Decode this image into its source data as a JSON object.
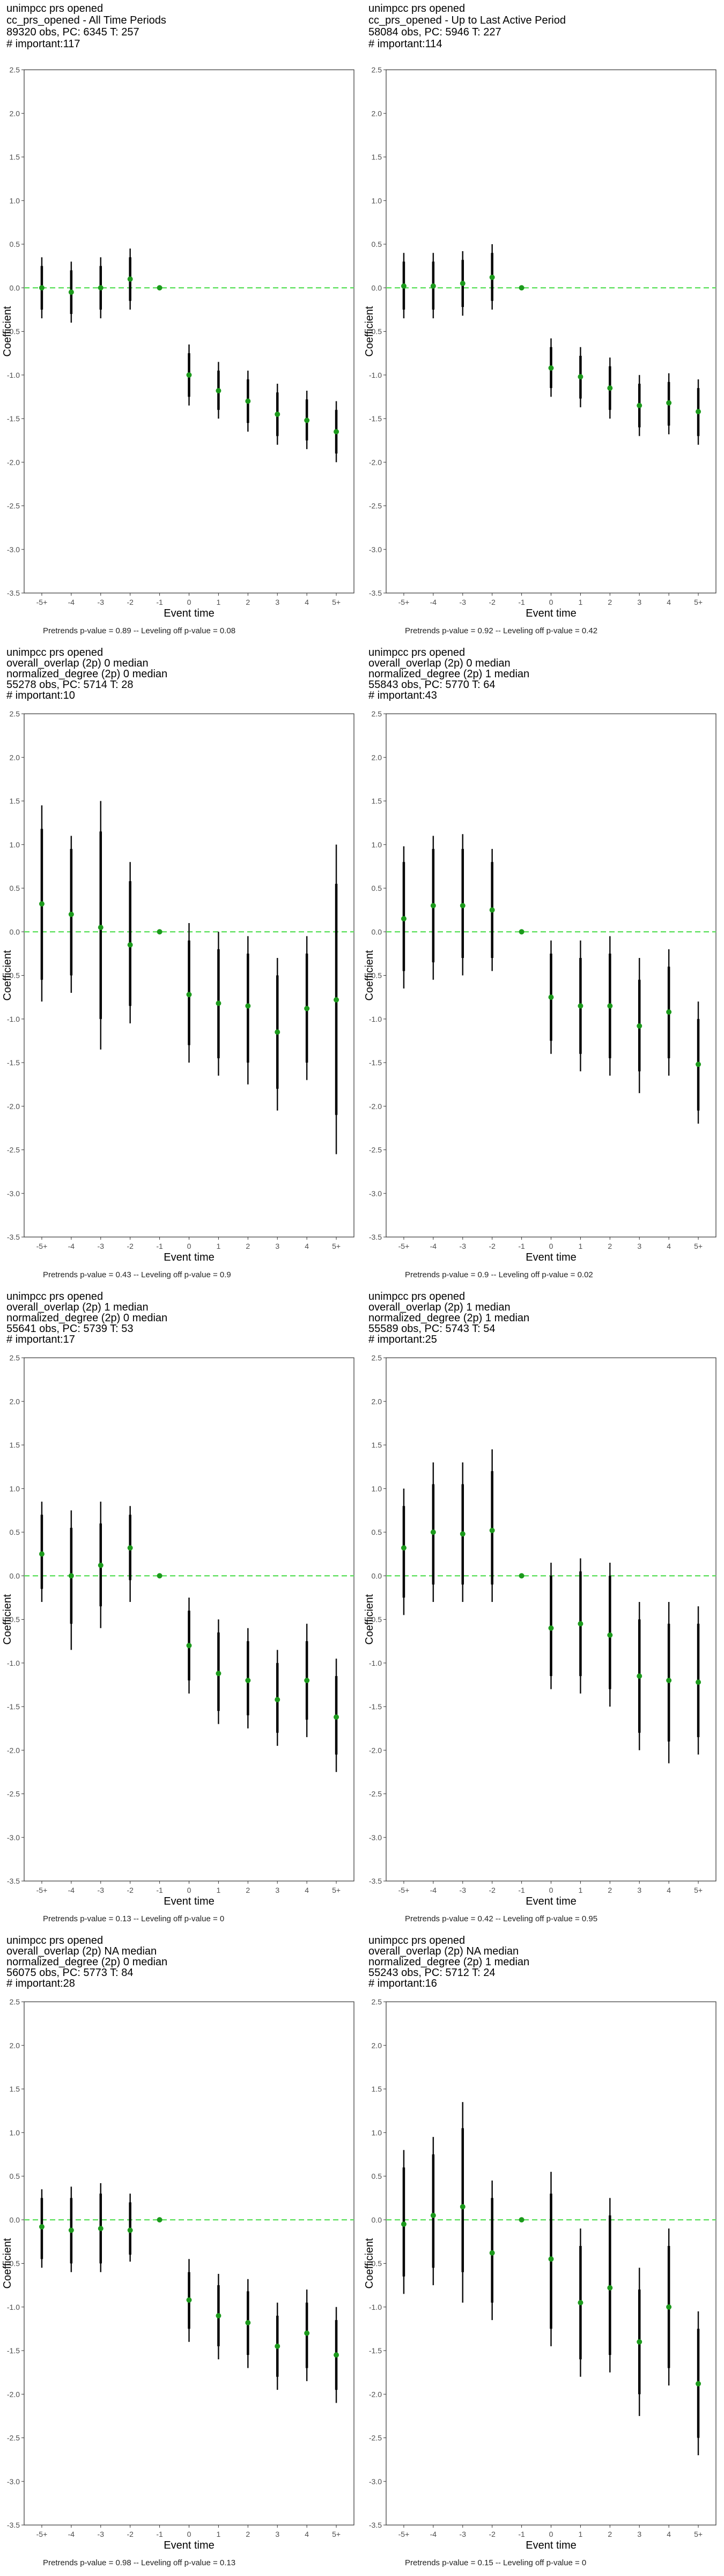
{
  "chart_data": [
    {
      "type": "errorbar",
      "title": [
        " unimpcc prs opened",
        "cc_prs_opened - All Time Periods",
        "89320 obs, PC: 6345 T: 257",
        "# important:117"
      ],
      "xlabel": "Event time",
      "ylabel": "Coefficient",
      "categories": [
        "-5+",
        "-4",
        "-3",
        "-2",
        "-1",
        "0",
        "1",
        "2",
        "3",
        "4",
        "5+"
      ],
      "yticks": [
        "2.5",
        "2.0",
        "1.5",
        "1.0",
        "0.5",
        "0.0",
        "-0.5",
        "-1.0",
        "-1.5",
        "-2.0",
        "-2.5",
        "-3.0",
        "-3.5"
      ],
      "ylim": [
        -3.5,
        2.5
      ],
      "estimates": [
        0.0,
        -0.05,
        0.0,
        0.1,
        0.0,
        -1.0,
        -1.18,
        -1.3,
        -1.45,
        -1.52,
        -1.65
      ],
      "ci_inner": [
        [
          -0.25,
          0.25
        ],
        [
          -0.3,
          0.2
        ],
        [
          -0.25,
          0.25
        ],
        [
          -0.15,
          0.35
        ],
        [
          0,
          0
        ],
        [
          -1.25,
          -0.75
        ],
        [
          -1.4,
          -0.95
        ],
        [
          -1.55,
          -1.05
        ],
        [
          -1.7,
          -1.2
        ],
        [
          -1.75,
          -1.28
        ],
        [
          -1.9,
          -1.4
        ]
      ],
      "ci_outer": [
        [
          -0.35,
          0.35
        ],
        [
          -0.4,
          0.3
        ],
        [
          -0.35,
          0.35
        ],
        [
          -0.25,
          0.45
        ],
        [
          0,
          0
        ],
        [
          -1.35,
          -0.65
        ],
        [
          -1.5,
          -0.85
        ],
        [
          -1.65,
          -0.95
        ],
        [
          -1.8,
          -1.1
        ],
        [
          -1.85,
          -1.18
        ],
        [
          -2.0,
          -1.3
        ]
      ],
      "footnote": "Pretrends p-value = 0.89 -- Leveling off p-value = 0.08"
    },
    {
      "type": "errorbar",
      "title": [
        " unimpcc prs opened",
        "cc_prs_opened - Up to Last Active Period",
        "58084 obs, PC: 5946 T: 227",
        "# important:114"
      ],
      "xlabel": "Event time",
      "ylabel": "Coefficient",
      "categories": [
        "-5+",
        "-4",
        "-3",
        "-2",
        "-1",
        "0",
        "1",
        "2",
        "3",
        "4",
        "5+"
      ],
      "yticks": [
        "2.5",
        "2.0",
        "1.5",
        "1.0",
        "0.5",
        "0.0",
        "-0.5",
        "-1.0",
        "-1.5",
        "-2.0",
        "-2.5",
        "-3.0",
        "-3.5"
      ],
      "ylim": [
        -3.5,
        2.5
      ],
      "estimates": [
        0.02,
        0.02,
        0.05,
        0.12,
        0.0,
        -0.92,
        -1.02,
        -1.15,
        -1.35,
        -1.32,
        -1.42
      ],
      "ci_inner": [
        [
          -0.25,
          0.3
        ],
        [
          -0.25,
          0.3
        ],
        [
          -0.22,
          0.32
        ],
        [
          -0.15,
          0.4
        ],
        [
          0,
          0
        ],
        [
          -1.15,
          -0.68
        ],
        [
          -1.27,
          -0.78
        ],
        [
          -1.4,
          -0.9
        ],
        [
          -1.6,
          -1.1
        ],
        [
          -1.58,
          -1.08
        ],
        [
          -1.7,
          -1.15
        ]
      ],
      "ci_outer": [
        [
          -0.35,
          0.4
        ],
        [
          -0.35,
          0.4
        ],
        [
          -0.32,
          0.42
        ],
        [
          -0.25,
          0.5
        ],
        [
          0,
          0
        ],
        [
          -1.25,
          -0.58
        ],
        [
          -1.37,
          -0.68
        ],
        [
          -1.5,
          -0.8
        ],
        [
          -1.7,
          -1.0
        ],
        [
          -1.68,
          -0.98
        ],
        [
          -1.8,
          -1.05
        ]
      ],
      "footnote": "Pretrends p-value = 0.92 -- Leveling off p-value = 0.42"
    },
    {
      "type": "errorbar",
      "title": [
        " unimpcc prs opened",
        "overall_overlap (2p) 0 median",
        "normalized_degree (2p) 0 median",
        "55278 obs, PC: 5714 T: 28",
        "# important:10"
      ],
      "xlabel": "Event time",
      "ylabel": "Coefficient",
      "categories": [
        "-5+",
        "-4",
        "-3",
        "-2",
        "-1",
        "0",
        "1",
        "2",
        "3",
        "4",
        "5+"
      ],
      "yticks": [
        "2.5",
        "2.0",
        "1.5",
        "1.0",
        "0.5",
        "0.0",
        "-0.5",
        "-1.0",
        "-1.5",
        "-2.0",
        "-2.5",
        "-3.0",
        "-3.5"
      ],
      "ylim": [
        -3.5,
        2.5
      ],
      "estimates": [
        0.32,
        0.2,
        0.05,
        -0.15,
        0.0,
        -0.72,
        -0.82,
        -0.85,
        -1.15,
        -0.88,
        -0.78
      ],
      "ci_inner": [
        [
          -0.55,
          1.18
        ],
        [
          -0.5,
          0.95
        ],
        [
          -1.0,
          1.15
        ],
        [
          -0.85,
          0.58
        ],
        [
          0,
          0
        ],
        [
          -1.3,
          -0.1
        ],
        [
          -1.45,
          -0.2
        ],
        [
          -1.5,
          -0.25
        ],
        [
          -1.8,
          -0.5
        ],
        [
          -1.5,
          -0.25
        ],
        [
          -2.1,
          0.55
        ]
      ],
      "ci_outer": [
        [
          -0.8,
          1.45
        ],
        [
          -0.7,
          1.1
        ],
        [
          -1.35,
          1.5
        ],
        [
          -1.05,
          0.8
        ],
        [
          0,
          0
        ],
        [
          -1.5,
          0.1
        ],
        [
          -1.65,
          0.0
        ],
        [
          -1.75,
          -0.05
        ],
        [
          -2.05,
          -0.3
        ],
        [
          -1.7,
          -0.05
        ],
        [
          -2.55,
          1.0
        ]
      ],
      "footnote": "Pretrends p-value = 0.43 -- Leveling off p-value = 0.9"
    },
    {
      "type": "errorbar",
      "title": [
        " unimpcc prs opened",
        "overall_overlap (2p) 0 median",
        "normalized_degree (2p) 1 median",
        "55843 obs, PC: 5770 T: 64",
        "# important:43"
      ],
      "xlabel": "Event time",
      "ylabel": "Coefficient",
      "categories": [
        "-5+",
        "-4",
        "-3",
        "-2",
        "-1",
        "0",
        "1",
        "2",
        "3",
        "4",
        "5+"
      ],
      "yticks": [
        "2.5",
        "2.0",
        "1.5",
        "1.0",
        "0.5",
        "0.0",
        "-0.5",
        "-1.0",
        "-1.5",
        "-2.0",
        "-2.5",
        "-3.0",
        "-3.5"
      ],
      "ylim": [
        -3.5,
        2.5
      ],
      "estimates": [
        0.15,
        0.3,
        0.3,
        0.25,
        0.0,
        -0.75,
        -0.85,
        -0.85,
        -1.08,
        -0.92,
        -1.52
      ],
      "ci_inner": [
        [
          -0.45,
          0.8
        ],
        [
          -0.35,
          0.95
        ],
        [
          -0.3,
          0.95
        ],
        [
          -0.3,
          0.8
        ],
        [
          0,
          0
        ],
        [
          -1.25,
          -0.25
        ],
        [
          -1.4,
          -0.3
        ],
        [
          -1.45,
          -0.25
        ],
        [
          -1.6,
          -0.55
        ],
        [
          -1.45,
          -0.4
        ],
        [
          -2.05,
          -1.0
        ]
      ],
      "ci_outer": [
        [
          -0.65,
          0.98
        ],
        [
          -0.55,
          1.1
        ],
        [
          -0.5,
          1.12
        ],
        [
          -0.45,
          0.95
        ],
        [
          0,
          0
        ],
        [
          -1.4,
          -0.1
        ],
        [
          -1.6,
          -0.1
        ],
        [
          -1.65,
          -0.05
        ],
        [
          -1.85,
          -0.3
        ],
        [
          -1.65,
          -0.2
        ],
        [
          -2.2,
          -0.8
        ]
      ],
      "footnote": "Pretrends p-value = 0.9 -- Leveling off p-value = 0.02"
    },
    {
      "type": "errorbar",
      "title": [
        " unimpcc prs opened",
        "overall_overlap (2p) 1 median",
        "normalized_degree (2p) 0 median",
        "55641 obs, PC: 5739 T: 53",
        "# important:17"
      ],
      "xlabel": "Event time",
      "ylabel": "Coefficient",
      "categories": [
        "-5+",
        "-4",
        "-3",
        "-2",
        "-1",
        "0",
        "1",
        "2",
        "3",
        "4",
        "5+"
      ],
      "yticks": [
        "2.5",
        "2.0",
        "1.5",
        "1.0",
        "0.5",
        "0.0",
        "-0.5",
        "-1.0",
        "-1.5",
        "-2.0",
        "-2.5",
        "-3.0",
        "-3.5"
      ],
      "ylim": [
        -3.5,
        2.5
      ],
      "estimates": [
        0.25,
        0.0,
        0.12,
        0.32,
        0.0,
        -0.8,
        -1.12,
        -1.2,
        -1.42,
        -1.2,
        -1.62
      ],
      "ci_inner": [
        [
          -0.15,
          0.7
        ],
        [
          -0.55,
          0.55
        ],
        [
          -0.35,
          0.6
        ],
        [
          -0.05,
          0.7
        ],
        [
          0,
          0
        ],
        [
          -1.2,
          -0.4
        ],
        [
          -1.55,
          -0.65
        ],
        [
          -1.6,
          -0.75
        ],
        [
          -1.8,
          -1.0
        ],
        [
          -1.65,
          -0.75
        ],
        [
          -2.05,
          -1.15
        ]
      ],
      "ci_outer": [
        [
          -0.3,
          0.85
        ],
        [
          -0.85,
          0.75
        ],
        [
          -0.6,
          0.85
        ],
        [
          -0.3,
          0.8
        ],
        [
          0,
          0
        ],
        [
          -1.35,
          -0.25
        ],
        [
          -1.7,
          -0.5
        ],
        [
          -1.75,
          -0.6
        ],
        [
          -1.95,
          -0.85
        ],
        [
          -1.85,
          -0.55
        ],
        [
          -2.25,
          -0.95
        ]
      ],
      "footnote": "Pretrends p-value = 0.13 -- Leveling off p-value = 0"
    },
    {
      "type": "errorbar",
      "title": [
        " unimpcc prs opened",
        "overall_overlap (2p) 1 median",
        "normalized_degree (2p) 1 median",
        "55589 obs, PC: 5743 T: 54",
        "# important:25"
      ],
      "xlabel": "Event time",
      "ylabel": "Coefficient",
      "categories": [
        "-5+",
        "-4",
        "-3",
        "-2",
        "-1",
        "0",
        "1",
        "2",
        "3",
        "4",
        "5+"
      ],
      "yticks": [
        "2.5",
        "2.0",
        "1.5",
        "1.0",
        "0.5",
        "0.0",
        "-0.5",
        "-1.0",
        "-1.5",
        "-2.0",
        "-2.5",
        "-3.0",
        "-3.5"
      ],
      "ylim": [
        -3.5,
        2.5
      ],
      "estimates": [
        0.32,
        0.5,
        0.48,
        0.52,
        0.0,
        -0.6,
        -0.55,
        -0.68,
        -1.15,
        -1.2,
        -1.22
      ],
      "ci_inner": [
        [
          -0.25,
          0.8
        ],
        [
          -0.1,
          1.05
        ],
        [
          -0.1,
          1.05
        ],
        [
          -0.1,
          1.2
        ],
        [
          0,
          0
        ],
        [
          -1.15,
          0.0
        ],
        [
          -1.15,
          0.05
        ],
        [
          -1.3,
          0.0
        ],
        [
          -1.8,
          -0.5
        ],
        [
          -1.9,
          -0.55
        ],
        [
          -1.85,
          -0.55
        ]
      ],
      "ci_outer": [
        [
          -0.45,
          1.0
        ],
        [
          -0.3,
          1.3
        ],
        [
          -0.3,
          1.3
        ],
        [
          -0.3,
          1.45
        ],
        [
          0,
          0
        ],
        [
          -1.3,
          0.15
        ],
        [
          -1.35,
          0.2
        ],
        [
          -1.5,
          0.15
        ],
        [
          -2.0,
          -0.3
        ],
        [
          -2.15,
          -0.3
        ],
        [
          -2.05,
          -0.35
        ]
      ],
      "footnote": "Pretrends p-value = 0.42 -- Leveling off p-value = 0.95"
    },
    {
      "type": "errorbar",
      "title": [
        " unimpcc prs opened",
        "overall_overlap (2p) NA median",
        "normalized_degree (2p) 0 median",
        "56075 obs, PC: 5773 T: 84",
        "# important:28"
      ],
      "xlabel": "Event time",
      "ylabel": "Coefficient",
      "categories": [
        "-5+",
        "-4",
        "-3",
        "-2",
        "-1",
        "0",
        "1",
        "2",
        "3",
        "4",
        "5+"
      ],
      "yticks": [
        "2.5",
        "2.0",
        "1.5",
        "1.0",
        "0.5",
        "0.0",
        "-0.5",
        "-1.0",
        "-1.5",
        "-2.0",
        "-2.5",
        "-3.0",
        "-3.5"
      ],
      "ylim": [
        -3.5,
        2.5
      ],
      "estimates": [
        -0.08,
        -0.12,
        -0.1,
        -0.12,
        0.0,
        -0.92,
        -1.1,
        -1.18,
        -1.45,
        -1.3,
        -1.55
      ],
      "ci_inner": [
        [
          -0.45,
          0.25
        ],
        [
          -0.5,
          0.25
        ],
        [
          -0.5,
          0.3
        ],
        [
          -0.4,
          0.2
        ],
        [
          0,
          0
        ],
        [
          -1.25,
          -0.6
        ],
        [
          -1.45,
          -0.75
        ],
        [
          -1.55,
          -0.82
        ],
        [
          -1.8,
          -1.1
        ],
        [
          -1.7,
          -0.95
        ],
        [
          -1.95,
          -1.15
        ]
      ],
      "ci_outer": [
        [
          -0.55,
          0.35
        ],
        [
          -0.6,
          0.38
        ],
        [
          -0.6,
          0.42
        ],
        [
          -0.48,
          0.3
        ],
        [
          0,
          0
        ],
        [
          -1.4,
          -0.45
        ],
        [
          -1.6,
          -0.62
        ],
        [
          -1.7,
          -0.68
        ],
        [
          -1.95,
          -0.95
        ],
        [
          -1.85,
          -0.8
        ],
        [
          -2.1,
          -1.0
        ]
      ],
      "footnote": "Pretrends p-value = 0.98 -- Leveling off p-value = 0.13"
    },
    {
      "type": "errorbar",
      "title": [
        " unimpcc prs opened",
        "overall_overlap (2p) NA median",
        "normalized_degree (2p) 1 median",
        "55243 obs, PC: 5712 T: 24",
        "# important:16"
      ],
      "xlabel": "Event time",
      "ylabel": "Coefficient",
      "categories": [
        "-5+",
        "-4",
        "-3",
        "-2",
        "-1",
        "0",
        "1",
        "2",
        "3",
        "4",
        "5+"
      ],
      "yticks": [
        "2.5",
        "2.0",
        "1.5",
        "1.0",
        "0.5",
        "0.0",
        "-0.5",
        "-1.0",
        "-1.5",
        "-2.0",
        "-2.5",
        "-3.0",
        "-3.5"
      ],
      "ylim": [
        -3.5,
        2.5
      ],
      "estimates": [
        -0.05,
        0.05,
        0.15,
        -0.38,
        0.0,
        -0.45,
        -0.95,
        -0.78,
        -1.4,
        -1.0,
        -1.88
      ],
      "ci_inner": [
        [
          -0.65,
          0.6
        ],
        [
          -0.55,
          0.75
        ],
        [
          -0.6,
          1.05
        ],
        [
          -0.95,
          0.25
        ],
        [
          0,
          0
        ],
        [
          -1.25,
          0.3
        ],
        [
          -1.6,
          -0.3
        ],
        [
          -1.55,
          0.05
        ],
        [
          -2.0,
          -0.8
        ],
        [
          -1.7,
          -0.3
        ],
        [
          -2.5,
          -1.25
        ]
      ],
      "ci_outer": [
        [
          -0.85,
          0.8
        ],
        [
          -0.75,
          0.95
        ],
        [
          -0.95,
          1.35
        ],
        [
          -1.15,
          0.45
        ],
        [
          0,
          0
        ],
        [
          -1.45,
          0.55
        ],
        [
          -1.8,
          -0.1
        ],
        [
          -1.75,
          0.25
        ],
        [
          -2.25,
          -0.55
        ],
        [
          -1.9,
          -0.1
        ],
        [
          -2.7,
          -1.05
        ]
      ],
      "footnote": "Pretrends p-value = 0.15 -- Leveling off p-value = 0"
    }
  ]
}
